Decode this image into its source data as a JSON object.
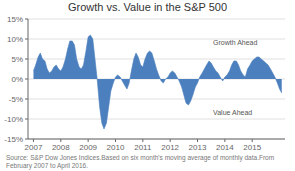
{
  "chart_data": {
    "type": "area",
    "title": "Growth vs. Value in the S&P 500",
    "x": [
      2007.0,
      2007.08,
      2007.17,
      2007.25,
      2007.33,
      2007.42,
      2007.5,
      2007.58,
      2007.67,
      2007.75,
      2007.83,
      2007.92,
      2008.0,
      2008.08,
      2008.17,
      2008.25,
      2008.33,
      2008.42,
      2008.5,
      2008.58,
      2008.67,
      2008.75,
      2008.83,
      2008.92,
      2009.0,
      2009.08,
      2009.17,
      2009.25,
      2009.33,
      2009.42,
      2009.5,
      2009.58,
      2009.67,
      2009.75,
      2009.83,
      2009.92,
      2010.0,
      2010.08,
      2010.17,
      2010.25,
      2010.33,
      2010.42,
      2010.5,
      2010.58,
      2010.67,
      2010.75,
      2010.83,
      2010.92,
      2011.0,
      2011.08,
      2011.17,
      2011.25,
      2011.33,
      2011.42,
      2011.5,
      2011.58,
      2011.67,
      2011.75,
      2011.83,
      2011.92,
      2012.0,
      2012.08,
      2012.17,
      2012.25,
      2012.33,
      2012.42,
      2012.5,
      2012.58,
      2012.67,
      2012.75,
      2012.83,
      2012.92,
      2013.0,
      2013.08,
      2013.17,
      2013.25,
      2013.33,
      2013.42,
      2013.5,
      2013.58,
      2013.67,
      2013.75,
      2013.83,
      2013.92,
      2014.0,
      2014.08,
      2014.17,
      2014.25,
      2014.33,
      2014.42,
      2014.5,
      2014.58,
      2014.67,
      2014.75,
      2014.83,
      2014.92,
      2015.0,
      2015.08,
      2015.17,
      2015.25,
      2015.33,
      2015.42,
      2015.5,
      2015.58,
      2015.67,
      2015.75,
      2015.83,
      2015.92,
      2016.0,
      2016.08
    ],
    "values": [
      2.0,
      3.5,
      5.5,
      6.5,
      5.0,
      4.5,
      2.5,
      1.5,
      2.0,
      3.0,
      3.5,
      2.5,
      2.0,
      3.0,
      5.0,
      7.5,
      9.5,
      9.5,
      8.5,
      5.0,
      3.0,
      2.5,
      3.5,
      7.0,
      10.5,
      11.0,
      10.0,
      5.0,
      0.0,
      -7.0,
      -11.0,
      -12.5,
      -11.0,
      -7.0,
      -3.0,
      -1.0,
      0.5,
      1.0,
      0.5,
      -0.5,
      -1.5,
      -2.5,
      -1.0,
      2.0,
      5.0,
      6.5,
      5.5,
      3.5,
      3.0,
      5.0,
      6.5,
      7.0,
      6.5,
      4.5,
      2.5,
      1.0,
      -0.5,
      -1.0,
      0.0,
      0.5,
      1.5,
      2.0,
      1.5,
      0.5,
      -0.5,
      -2.0,
      -4.0,
      -6.0,
      -6.5,
      -5.5,
      -4.0,
      -2.0,
      -1.0,
      0.5,
      1.5,
      2.5,
      3.5,
      4.5,
      4.0,
      3.0,
      2.0,
      1.5,
      0.5,
      -0.5,
      0.5,
      1.0,
      2.0,
      3.5,
      4.5,
      4.5,
      3.5,
      2.0,
      1.0,
      0.5,
      2.5,
      3.5,
      4.5,
      5.0,
      5.5,
      5.5,
      5.0,
      4.5,
      4.0,
      3.5,
      2.5,
      1.5,
      0.5,
      -1.0,
      -2.5,
      -3.5
    ],
    "color": "#4B7FBE",
    "xlim": [
      2006.8,
      2016.2
    ],
    "xticks": [
      2007,
      2008,
      2009,
      2010,
      2011,
      2012,
      2013,
      2014,
      2015
    ],
    "ylim": [
      -15,
      15
    ],
    "yticks": [
      {
        "value": 15,
        "label": "15%"
      },
      {
        "value": 10,
        "label": "10%"
      },
      {
        "value": 5,
        "label": "5%"
      },
      {
        "value": 0,
        "label": "0%"
      },
      {
        "value": -5,
        "label": "-5%"
      },
      {
        "value": -10,
        "label": "-10%"
      },
      {
        "value": -15,
        "label": "-15%"
      }
    ],
    "grid": true,
    "annotations": [
      "Growth Ahead",
      "Value Ahead"
    ],
    "source": "Source: S&P Dow Jones Indices.Based on six month's moving average of monthly data.From February 2007 to April 2016."
  }
}
